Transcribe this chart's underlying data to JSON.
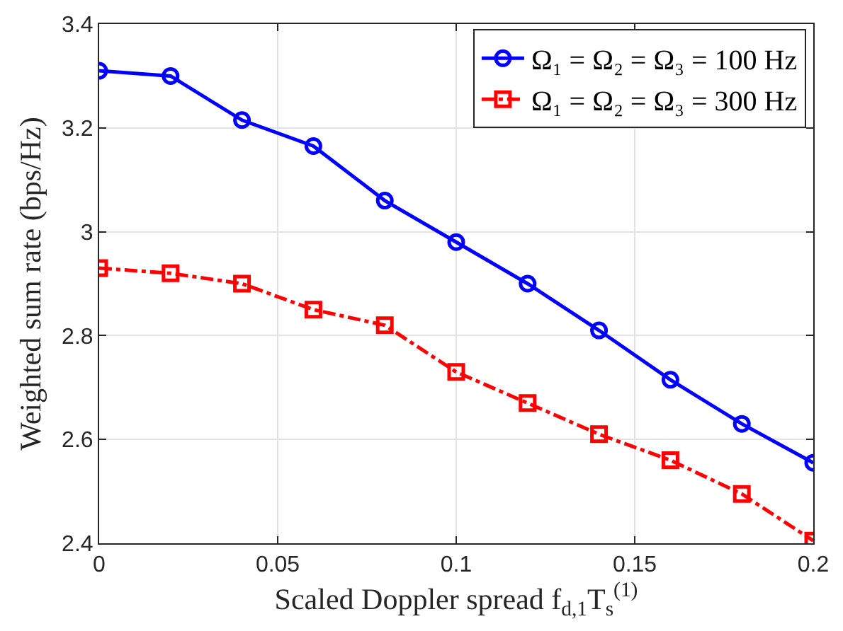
{
  "chart_data": {
    "type": "line",
    "xlabel": "Scaled Doppler spread f$_{d,1}$T$_{s}$$^{(1)}$",
    "ylabel": "Weighted sum rate (bps/Hz)",
    "x": [
      0,
      0.02,
      0.04,
      0.06,
      0.08,
      0.1,
      0.12,
      0.14,
      0.16,
      0.18,
      0.2
    ],
    "series": [
      {
        "name": "Ω₁ = Ω₂ = Ω₃ = 100 Hz",
        "color": "#0000ff",
        "marker": "circle",
        "line_style": "solid",
        "values": [
          3.31,
          3.3,
          3.215,
          3.165,
          3.06,
          2.98,
          2.9,
          2.81,
          2.715,
          2.63,
          2.555
        ]
      },
      {
        "name": "Ω₁ = Ω₂ = Ω₃ = 300 Hz",
        "color": "#ff0000",
        "marker": "square",
        "line_style": "dashdot",
        "values": [
          2.93,
          2.92,
          2.9,
          2.85,
          2.82,
          2.73,
          2.67,
          2.61,
          2.56,
          2.495,
          2.405
        ]
      }
    ],
    "xlim": [
      0,
      0.2
    ],
    "xticks": [
      0,
      0.05,
      0.1,
      0.15,
      0.2
    ],
    "ylim": [
      2.4,
      3.4
    ],
    "yticks": [
      2.4,
      2.6,
      2.8,
      3,
      3.2,
      3.4
    ],
    "grid": true,
    "legend": "top right"
  }
}
